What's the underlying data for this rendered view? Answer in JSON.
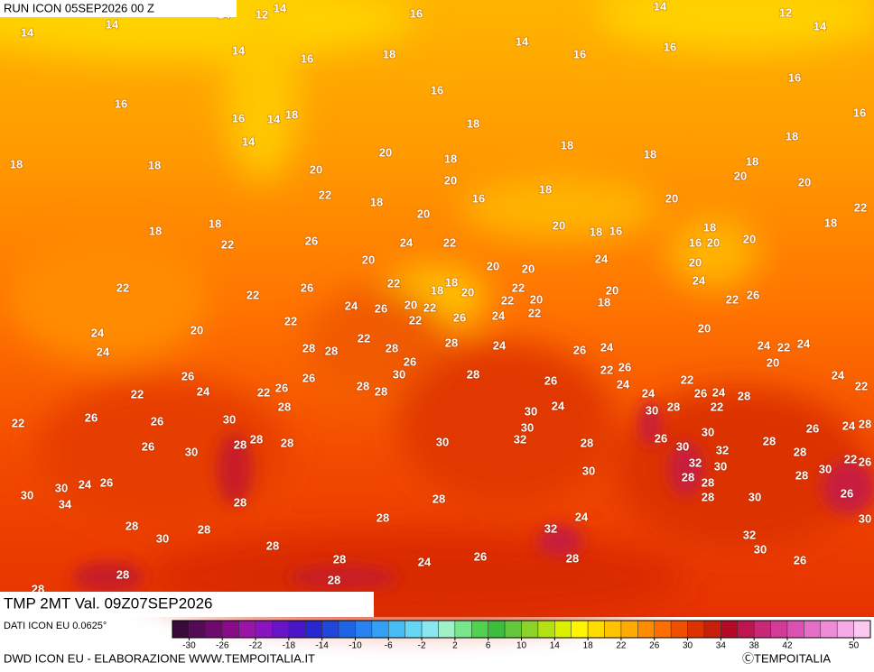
{
  "header": {
    "run": "RUN ICON 05SEP2026 00 Z",
    "field": "TMP 2MT Val. 09Z07SEP2026",
    "source": "DATI ICON EU 0.0625°"
  },
  "footer": {
    "left": "DWD ICON EU - ELABORAZIONE WWW.TEMPOITALIA.IT",
    "right": "ⒸTEMPOITALIA"
  },
  "colorbar": {
    "lim": [
      -32,
      52
    ],
    "ticks": [
      -30,
      -26,
      -22,
      -18,
      -14,
      -10,
      -6,
      -2,
      2,
      6,
      10,
      14,
      18,
      22,
      26,
      30,
      34,
      38,
      42,
      50
    ],
    "colors": [
      "#3a0a3a",
      "#550a55",
      "#6e0a6e",
      "#8a0a8a",
      "#9a14a8",
      "#8a14c0",
      "#6a14c8",
      "#4a14c8",
      "#2828d2",
      "#2046dc",
      "#2064e6",
      "#2882f0",
      "#32a0f5",
      "#46bef5",
      "#64d7f5",
      "#8ce6f0",
      "#a0f0c8",
      "#78e68c",
      "#50d250",
      "#3cbe3c",
      "#64c83c",
      "#8cd228",
      "#b4e114",
      "#dcf000",
      "#fff500",
      "#ffdc00",
      "#ffc300",
      "#ffaa00",
      "#ff8c00",
      "#ff6e00",
      "#f05000",
      "#dc3200",
      "#c81e0a",
      "#b40a28",
      "#be1450",
      "#c82878",
      "#d23c96",
      "#dc50b4",
      "#e66ec8",
      "#f08cd7",
      "#f5aae6",
      "#fac8f0"
    ]
  },
  "map_labels": [
    14,
    14,
    14,
    12,
    14,
    16,
    14,
    14,
    12,
    14,
    14,
    16,
    18,
    16,
    16,
    16,
    16,
    16,
    16,
    14,
    18,
    18,
    16,
    14,
    18,
    18,
    18,
    18,
    18,
    20,
    20,
    18,
    18,
    20,
    20,
    20,
    22,
    18,
    16,
    18,
    20,
    22,
    20,
    18,
    18,
    18,
    20,
    18,
    16,
    18,
    16,
    20,
    20,
    22,
    26,
    24,
    22,
    24,
    20,
    20,
    20,
    20,
    22,
    22,
    26,
    22,
    18,
    18,
    22,
    24,
    20,
    20,
    22,
    20,
    22,
    20,
    22,
    26,
    24,
    26,
    18,
    22,
    26,
    24,
    22,
    22,
    20,
    24,
    20,
    24,
    28,
    28,
    22,
    28,
    28,
    24,
    26,
    24,
    24,
    22,
    24,
    26,
    20,
    26,
    26,
    30,
    28,
    22,
    26,
    24,
    22,
    24,
    22,
    26,
    28,
    28,
    26,
    24,
    22,
    24,
    26,
    24,
    22,
    28,
    28,
    30,
    24,
    28,
    22,
    22,
    26,
    26,
    30,
    30,
    26,
    24,
    28,
    30,
    28,
    28,
    28,
    30,
    32,
    28,
    26,
    30,
    28,
    26,
    30,
    32,
    28,
    30,
    26,
    30,
    28,
    30,
    32,
    30,
    22,
    24,
    26,
    28,
    28,
    30,
    30,
    34,
    28,
    28,
    28,
    30,
    26,
    24,
    28,
    28,
    32,
    28,
    30,
    30,
    28,
    32,
    30,
    26,
    28,
    24,
    28,
    26,
    28,
    28,
    28
  ]
}
